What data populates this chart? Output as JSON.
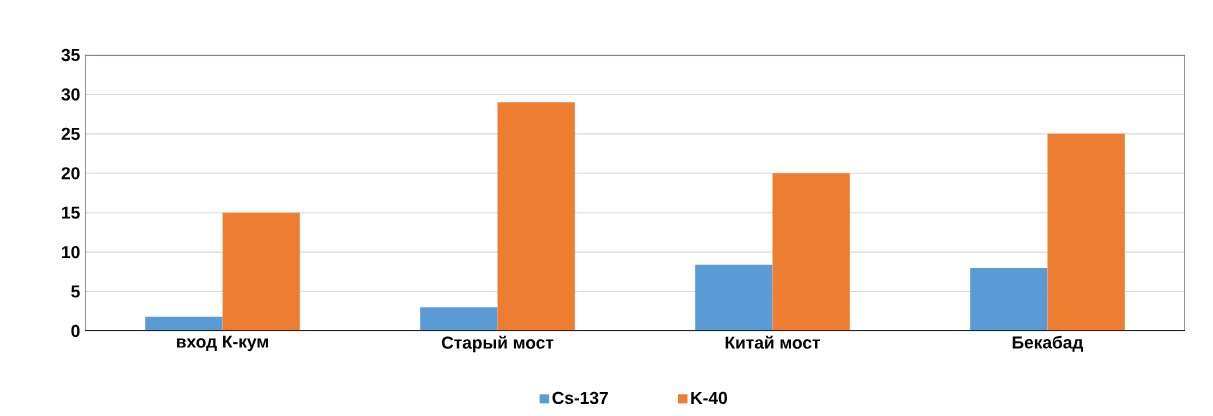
{
  "chart_data": {
    "type": "bar",
    "categories": [
      "вход К-кум",
      "Старый мост",
      "Китай мост",
      "Бекабад"
    ],
    "series": [
      {
        "name": "Cs-137",
        "color": "#5b9bd5",
        "values": [
          1.8,
          3,
          8.4,
          8
        ]
      },
      {
        "name": "K-40",
        "color": "#ed7d31",
        "values": [
          15,
          29,
          20,
          25
        ]
      }
    ],
    "ylim": [
      0,
      35
    ],
    "yticks": [
      0,
      5,
      10,
      15,
      20,
      25,
      30,
      35
    ],
    "grid": "y",
    "legend": "bottom"
  }
}
